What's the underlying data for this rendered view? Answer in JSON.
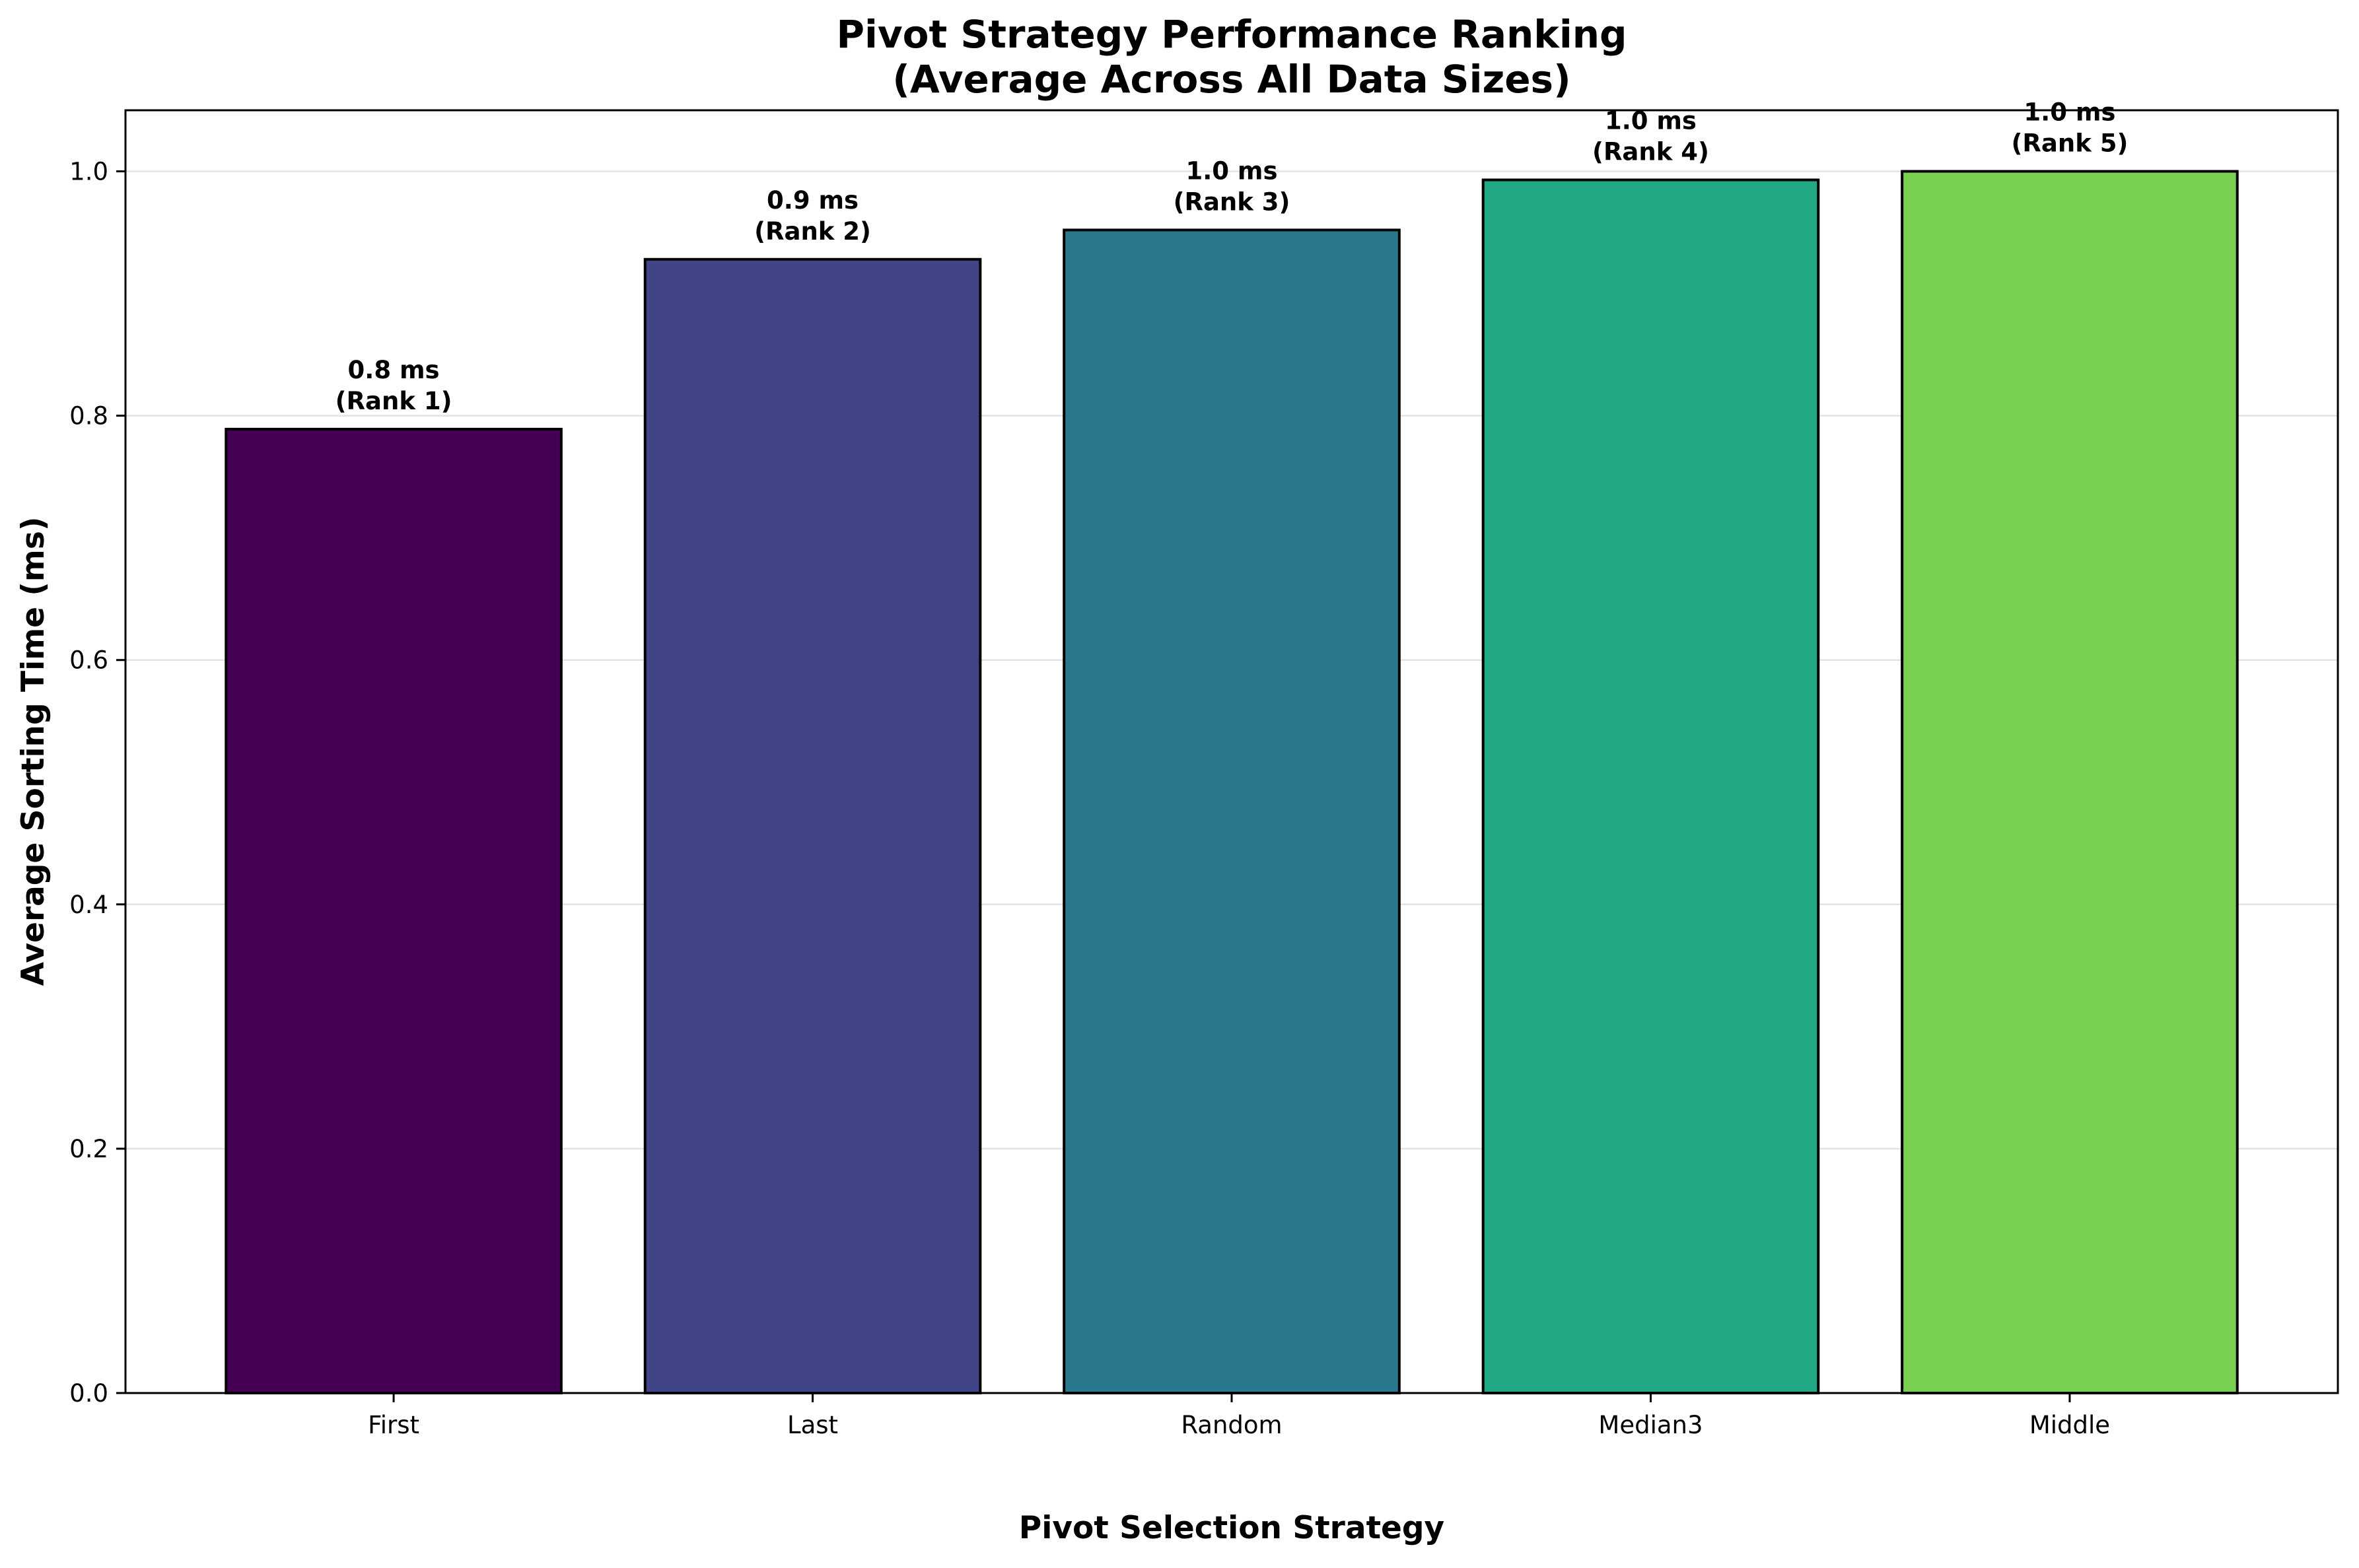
{
  "chart_data": {
    "type": "bar",
    "title_line1": "Pivot Strategy Performance Ranking",
    "title_line2": "(Average Across All Data Sizes)",
    "xlabel": "Pivot Selection Strategy",
    "ylabel": "Average Sorting Time (ms)",
    "categories": [
      "First",
      "Last",
      "Random",
      "Median3",
      "Middle"
    ],
    "values": [
      0.789,
      0.928,
      0.952,
      0.993,
      1.0
    ],
    "bar_value_labels": [
      "0.8 ms",
      "0.9 ms",
      "1.0 ms",
      "1.0 ms",
      "1.0 ms"
    ],
    "bar_rank_labels": [
      "(Rank 1)",
      "(Rank 2)",
      "(Rank 3)",
      "(Rank 4)",
      "(Rank 5)"
    ],
    "colors": [
      "#440154",
      "#414487",
      "#2a788e",
      "#22a884",
      "#7ad151"
    ],
    "ylim": [
      0,
      1.05
    ],
    "yticks": [
      0.0,
      0.2,
      0.4,
      0.6,
      0.8,
      1.0
    ],
    "ytick_labels": [
      "0.0",
      "0.2",
      "0.4",
      "0.6",
      "0.8",
      "1.0"
    ],
    "grid": "horizontal",
    "legend": "none"
  }
}
